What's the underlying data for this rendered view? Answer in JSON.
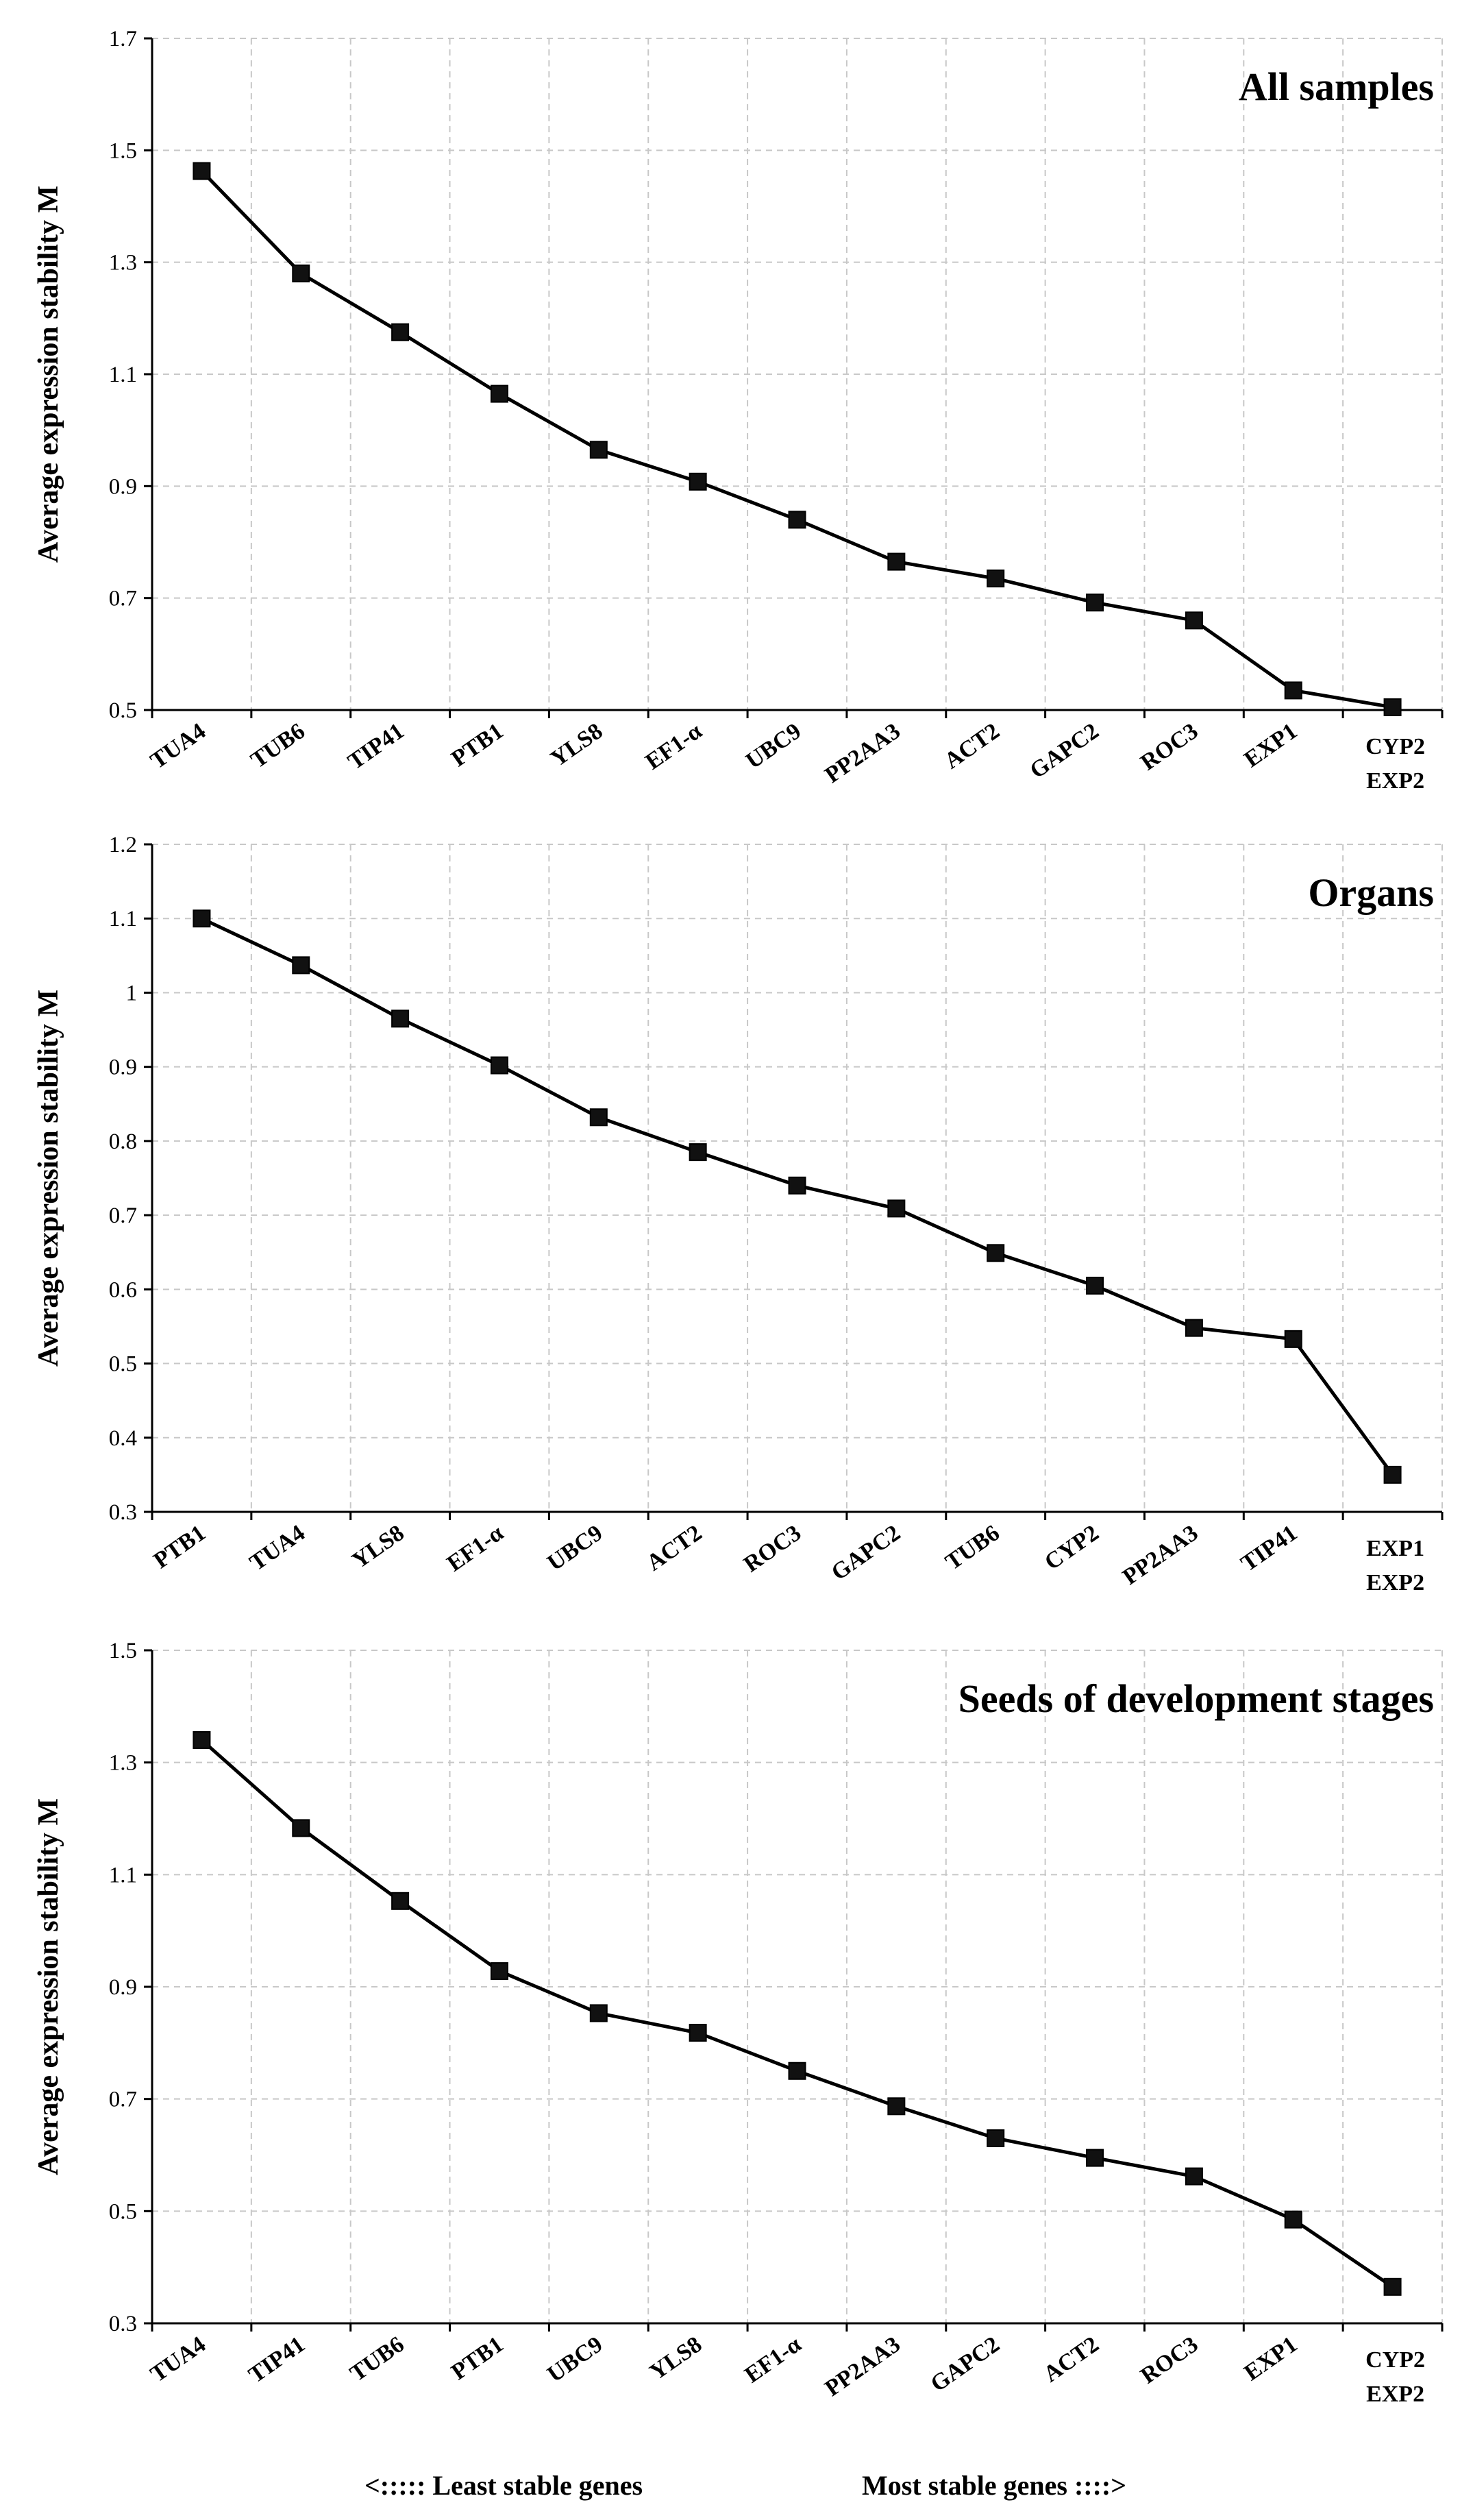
{
  "chart_data": [
    {
      "type": "line",
      "title": "All samples",
      "ylabel": "Average expression stability M",
      "ylim": [
        0.5,
        1.7
      ],
      "yticks": [
        "0.5",
        "0.7",
        "0.9",
        "1.1",
        "1.3",
        "1.5",
        "1.7"
      ],
      "categories": [
        {
          "lines": [
            "TUA4"
          ]
        },
        {
          "lines": [
            "TUB6"
          ]
        },
        {
          "lines": [
            "TIP41"
          ]
        },
        {
          "lines": [
            "PTB1"
          ]
        },
        {
          "lines": [
            "YLS8"
          ]
        },
        {
          "lines": [
            "EF1-α"
          ]
        },
        {
          "lines": [
            "UBC9"
          ]
        },
        {
          "lines": [
            "PP2AA3"
          ]
        },
        {
          "lines": [
            "ACT2"
          ]
        },
        {
          "lines": [
            "GAPC2"
          ]
        },
        {
          "lines": [
            "ROC3"
          ]
        },
        {
          "lines": [
            "EXP1"
          ]
        },
        {
          "lines": [
            "CYP2",
            "EXP2"
          ]
        }
      ],
      "values": [
        1.463,
        1.28,
        1.175,
        1.065,
        0.965,
        0.908,
        0.84,
        0.765,
        0.735,
        0.692,
        0.66,
        0.535,
        0.505
      ],
      "grid": true
    },
    {
      "type": "line",
      "title": "Organs",
      "ylabel": "Average expression stability M",
      "ylim": [
        0.3,
        1.2
      ],
      "yticks": [
        "0.3",
        "0.4",
        "0.5",
        "0.6",
        "0.7",
        "0.8",
        "0.9",
        "1",
        "1.1",
        "1.2"
      ],
      "categories": [
        {
          "lines": [
            "PTB1"
          ]
        },
        {
          "lines": [
            "TUA4"
          ]
        },
        {
          "lines": [
            "YLS8"
          ]
        },
        {
          "lines": [
            "EF1-α"
          ]
        },
        {
          "lines": [
            "UBC9"
          ]
        },
        {
          "lines": [
            "ACT2"
          ]
        },
        {
          "lines": [
            "ROC3"
          ]
        },
        {
          "lines": [
            "GAPC2"
          ]
        },
        {
          "lines": [
            "TUB6"
          ]
        },
        {
          "lines": [
            "CYP2"
          ]
        },
        {
          "lines": [
            "PP2AA3"
          ]
        },
        {
          "lines": [
            "TIP41"
          ]
        },
        {
          "lines": [
            "EXP1",
            "EXP2"
          ]
        }
      ],
      "values": [
        1.1,
        1.037,
        0.965,
        0.902,
        0.832,
        0.785,
        0.74,
        0.709,
        0.649,
        0.605,
        0.548,
        0.533,
        0.35
      ],
      "grid": true
    },
    {
      "type": "line",
      "title": "Seeds of development stages",
      "ylabel": "Average expression stability M",
      "ylim": [
        0.3,
        1.5
      ],
      "yticks": [
        "0.3",
        "0.5",
        "0.7",
        "0.9",
        "1.1",
        "1.3",
        "1.5"
      ],
      "categories": [
        {
          "lines": [
            "TUA4"
          ]
        },
        {
          "lines": [
            "TIP41"
          ]
        },
        {
          "lines": [
            "TUB6"
          ]
        },
        {
          "lines": [
            "PTB1"
          ]
        },
        {
          "lines": [
            "UBC9"
          ]
        },
        {
          "lines": [
            "YLS8"
          ]
        },
        {
          "lines": [
            "EF1-α"
          ]
        },
        {
          "lines": [
            "PP2AA3"
          ]
        },
        {
          "lines": [
            "GAPC2"
          ]
        },
        {
          "lines": [
            "ACT2"
          ]
        },
        {
          "lines": [
            "ROC3"
          ]
        },
        {
          "lines": [
            "EXP1"
          ]
        },
        {
          "lines": [
            "CYP2",
            "EXP2"
          ]
        }
      ],
      "values": [
        1.34,
        1.183,
        1.053,
        0.928,
        0.853,
        0.818,
        0.75,
        0.687,
        0.63,
        0.595,
        0.562,
        0.485,
        0.365
      ],
      "grid": true
    }
  ],
  "footer": {
    "left": "<:::::  Least stable genes",
    "right": "Most stable genes ::::>"
  }
}
